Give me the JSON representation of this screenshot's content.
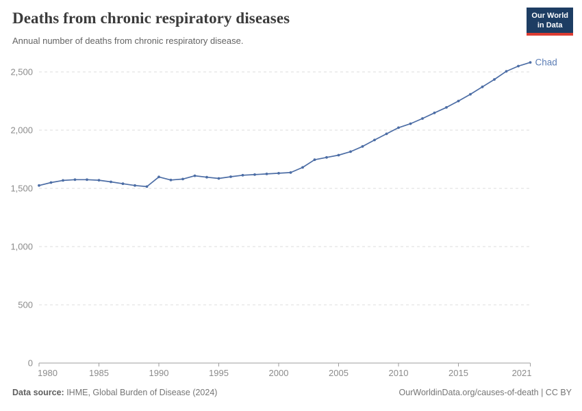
{
  "header": {
    "title": "Deaths from chronic respiratory diseases",
    "subtitle": "Annual number of deaths from chronic respiratory disease.",
    "logo": {
      "line1": "Our World",
      "line2": "in Data"
    }
  },
  "chart_data": {
    "type": "line",
    "title": "Deaths from chronic respiratory diseases",
    "subtitle": "Annual number of deaths from chronic respiratory disease.",
    "grid": "horizontal-dashed",
    "legend_position": "end-of-line",
    "end_label": "Chad",
    "line_color": "#4c6da5",
    "x_ticks": [
      1980,
      1985,
      1990,
      1995,
      2000,
      2005,
      2010,
      2015,
      2021
    ],
    "y_ticks": [
      0,
      500,
      1000,
      1500,
      2000,
      2500
    ],
    "xlim": [
      1980,
      2021
    ],
    "ylim": [
      0,
      2600
    ],
    "xlabel": "",
    "ylabel": "",
    "x": [
      1980,
      1981,
      1982,
      1983,
      1984,
      1985,
      1986,
      1987,
      1988,
      1989,
      1990,
      1991,
      1992,
      1993,
      1994,
      1995,
      1996,
      1997,
      1998,
      1999,
      2000,
      2001,
      2002,
      2003,
      2004,
      2005,
      2006,
      2007,
      2008,
      2009,
      2010,
      2011,
      2012,
      2013,
      2014,
      2015,
      2016,
      2017,
      2018,
      2019,
      2020,
      2021
    ],
    "series": [
      {
        "name": "Chad",
        "values": [
          1525,
          1550,
          1568,
          1575,
          1575,
          1570,
          1556,
          1540,
          1525,
          1515,
          1598,
          1572,
          1580,
          1608,
          1596,
          1585,
          1600,
          1613,
          1618,
          1624,
          1630,
          1636,
          1680,
          1746,
          1766,
          1785,
          1815,
          1860,
          1915,
          1968,
          2021,
          2055,
          2100,
          2148,
          2195,
          2250,
          2308,
          2372,
          2435,
          2505,
          2550,
          2582
        ]
      }
    ]
  },
  "footer": {
    "source_label": "Data source:",
    "source_text": " IHME, Global Burden of Disease (2024)",
    "link_text": "OurWorldinData.org/causes-of-death",
    "license_text": " | CC BY"
  }
}
